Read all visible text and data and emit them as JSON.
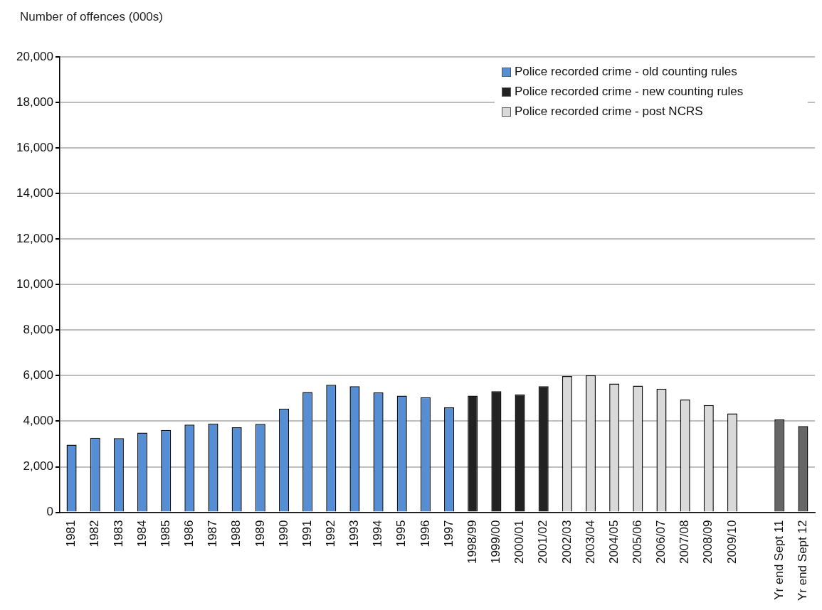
{
  "chart_data": {
    "type": "bar",
    "ylabel": "Number of offences (000s)",
    "categories": [
      "1981",
      "1982",
      "1983",
      "1984",
      "1985",
      "1986",
      "1987",
      "1988",
      "1989",
      "1990",
      "1991",
      "1992",
      "1993",
      "1994",
      "1995",
      "1996",
      "1997",
      "1998/99",
      "1999/00",
      "2000/01",
      "2001/02",
      "2002/03",
      "2003/04",
      "2004/05",
      "2005/06",
      "2006/07",
      "2007/08",
      "2008/09",
      "2009/10",
      null,
      "Yr end Sept 11",
      "Yr end Sept 12"
    ],
    "series": [
      {
        "name": "Police recorded crime - old counting rules",
        "color": "#558ed5",
        "values": [
          2970,
          3270,
          3260,
          3500,
          3620,
          3850,
          3900,
          3730,
          3880,
          4550,
          5280,
          5600,
          5540,
          5260,
          5120,
          5050,
          4610,
          null,
          null,
          null,
          null,
          null,
          null,
          null,
          null,
          null,
          null,
          null,
          null,
          null,
          null,
          null
        ]
      },
      {
        "name": "Police recorded crime - new counting rules",
        "color": "#222222",
        "values": [
          null,
          null,
          null,
          null,
          null,
          null,
          null,
          null,
          null,
          null,
          null,
          null,
          null,
          null,
          null,
          null,
          null,
          5120,
          5320,
          5180,
          5540,
          null,
          null,
          null,
          null,
          null,
          null,
          null,
          null,
          null,
          null,
          null
        ]
      },
      {
        "name": "Police recorded crime - post NCRS",
        "color": "#d9d9d9",
        "values": [
          null,
          null,
          null,
          null,
          null,
          null,
          null,
          null,
          null,
          null,
          null,
          null,
          null,
          null,
          null,
          null,
          null,
          null,
          null,
          null,
          null,
          5980,
          6020,
          5650,
          5560,
          5430,
          4950,
          4710,
          4340,
          null,
          null,
          null
        ]
      },
      {
        "color": "#666666",
        "values": [
          null,
          null,
          null,
          null,
          null,
          null,
          null,
          null,
          null,
          null,
          null,
          null,
          null,
          null,
          null,
          null,
          null,
          null,
          null,
          null,
          null,
          null,
          null,
          null,
          null,
          null,
          null,
          null,
          null,
          null,
          4080,
          3790
        ]
      }
    ],
    "ylim": [
      0,
      20000
    ],
    "yticks": [
      {
        "value": 0,
        "label": "0"
      },
      {
        "value": 2000,
        "label": "2,000"
      },
      {
        "value": 4000,
        "label": "4,000"
      },
      {
        "value": 6000,
        "label": "6,000"
      },
      {
        "value": 8000,
        "label": "8,000"
      },
      {
        "value": 10000,
        "label": "10,000"
      },
      {
        "value": 12000,
        "label": "12,000"
      },
      {
        "value": 14000,
        "label": "14,000"
      },
      {
        "value": 16000,
        "label": "16,000"
      },
      {
        "value": 18000,
        "label": "18,000"
      },
      {
        "value": 20000,
        "label": "20,000"
      }
    ],
    "grid": "y",
    "legend": "top right"
  }
}
